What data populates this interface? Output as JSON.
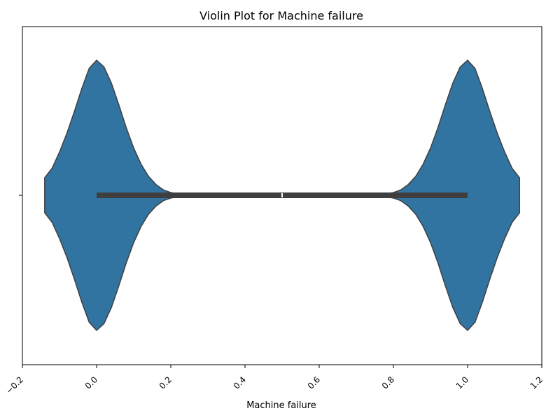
{
  "chart_data": {
    "type": "violin",
    "title": "Violin Plot for Machine failure",
    "xlabel": "Machine failure",
    "ylabel": "",
    "xlim": [
      -0.2,
      1.2
    ],
    "xticks": [
      -0.2,
      0.0,
      0.2,
      0.4,
      0.6,
      0.8,
      1.0,
      1.2
    ],
    "xtick_labels": [
      "−0.2",
      "0.0",
      "0.2",
      "0.4",
      "0.6",
      "0.8",
      "1.0",
      "1.2"
    ],
    "ytick_labels": [
      ""
    ],
    "grid": false,
    "violin": {
      "fill_color": "#3274a1",
      "edge_color": "#3f3f3f",
      "kde_x": [
        -0.14,
        -0.12,
        -0.1,
        -0.08,
        -0.06,
        -0.04,
        -0.02,
        0.0,
        0.02,
        0.04,
        0.06,
        0.08,
        0.1,
        0.12,
        0.14,
        0.16,
        0.18,
        0.2,
        0.25,
        0.3,
        0.35,
        0.4,
        0.45,
        0.5,
        0.55,
        0.6,
        0.65,
        0.7,
        0.75,
        0.8,
        0.82,
        0.84,
        0.86,
        0.88,
        0.9,
        0.92,
        0.94,
        0.96,
        0.98,
        1.0,
        1.02,
        1.04,
        1.06,
        1.08,
        1.1,
        1.12,
        1.14
      ],
      "kde_density": [
        0.13,
        0.2,
        0.32,
        0.46,
        0.62,
        0.79,
        0.94,
        1.0,
        0.95,
        0.83,
        0.67,
        0.5,
        0.35,
        0.23,
        0.14,
        0.08,
        0.04,
        0.02,
        0.0,
        0.0,
        0.0,
        0.0,
        0.0,
        0.0,
        0.0,
        0.0,
        0.0,
        0.0,
        0.0,
        0.02,
        0.04,
        0.08,
        0.14,
        0.23,
        0.35,
        0.5,
        0.67,
        0.83,
        0.95,
        1.0,
        0.94,
        0.79,
        0.62,
        0.46,
        0.32,
        0.2,
        0.13
      ],
      "whisker": [
        0.0,
        1.0
      ],
      "box": [
        0.0,
        1.0
      ],
      "median": 0.5
    }
  }
}
